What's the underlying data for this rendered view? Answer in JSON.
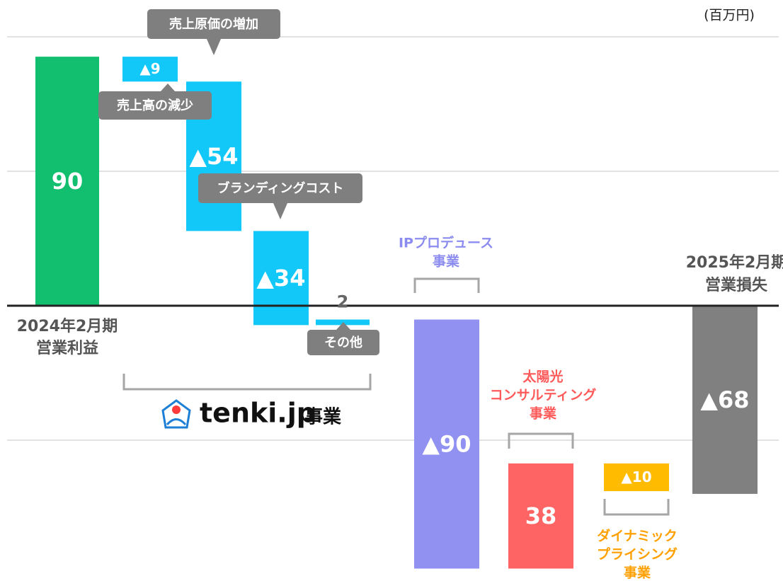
{
  "chart_data": {
    "type": "waterfall",
    "unit": "(百万円)",
    "categories": [
      [
        "2024年2月期",
        "営業利益"
      ],
      [
        "売上高の減少"
      ],
      [
        "売上原価の増加"
      ],
      [
        "ブランディングコスト"
      ],
      [
        "その他"
      ],
      [
        "IPプロデュース",
        "事業"
      ],
      [
        "太陽光",
        "コンサルティング",
        "事業"
      ],
      [
        "ダイナミック",
        "プライシング",
        "事業"
      ],
      [
        "2025年2月期",
        "営業損失"
      ]
    ],
    "values": [
      90,
      -9,
      -54,
      -34,
      2,
      -90,
      38,
      -10,
      -68
    ],
    "value_labels": [
      "90",
      "▲9",
      "▲54",
      "▲34",
      "2",
      "▲90",
      "38",
      "▲10",
      "▲68"
    ],
    "measures": [
      "absolute",
      "relative",
      "relative",
      "relative",
      "relative",
      "relative",
      "relative",
      "relative",
      "total"
    ],
    "colors": [
      "#12bf6e",
      "#12c8f8",
      "#12c8f8",
      "#12c8f8",
      "#12c8f8",
      "#9191f2",
      "#ff6464",
      "#ffbb00",
      "#808080"
    ],
    "ylim": [
      -100,
      100
    ],
    "group": {
      "brand": "tenki.jp",
      "suffix": "事業"
    }
  }
}
